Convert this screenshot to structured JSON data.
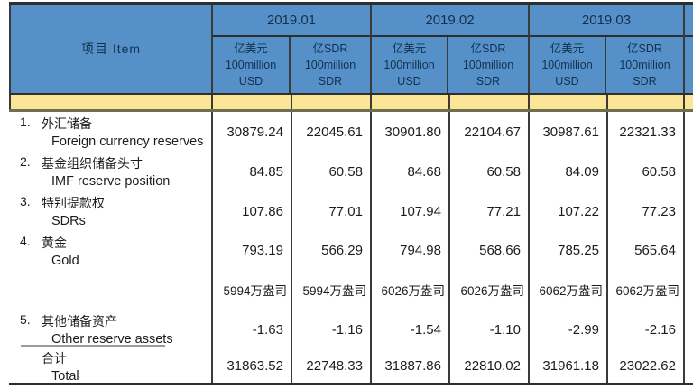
{
  "colors": {
    "header_bg": "#5591C8",
    "header_text": "#14304e",
    "band_bg": "#FAE696",
    "band_border": "#6e6e50",
    "grid_border": "#3a3a3a",
    "outer_border": "#2e2e2e"
  },
  "chart_data": {
    "type": "table",
    "title": "",
    "item_header": "项目  Item",
    "months": [
      "2019.01",
      "2019.02",
      "2019.03"
    ],
    "unit_headers": {
      "usd": {
        "l1": "亿美元",
        "l2": "100million",
        "l3": "USD"
      },
      "sdr": {
        "l1": "亿SDR",
        "l2": "100million",
        "l3": "SDR"
      }
    },
    "rows": [
      {
        "no": "1.",
        "cn": "外汇储备",
        "en": "Foreign currency reserves",
        "values": [
          "30879.24",
          "22045.61",
          "30901.80",
          "22104.67",
          "30987.61",
          "22321.33"
        ]
      },
      {
        "no": "2.",
        "cn": "基金组织储备头寸",
        "en": "IMF reserve position",
        "values": [
          "84.85",
          "60.58",
          "84.68",
          "60.58",
          "84.09",
          "60.58"
        ]
      },
      {
        "no": "3.",
        "cn": "特别提款权",
        "en": "SDRs",
        "values": [
          "107.86",
          "77.01",
          "107.94",
          "77.21",
          "107.22",
          "77.23"
        ]
      },
      {
        "no": "4.",
        "cn": "黄金",
        "en": "Gold",
        "values": [
          "793.19",
          "566.29",
          "794.98",
          "568.66",
          "785.25",
          "565.64"
        ]
      },
      {
        "no": "",
        "cn": "",
        "en": "",
        "values": [
          "5994万盎司",
          "5994万盎司",
          "6026万盎司",
          "6026万盎司",
          "6062万盎司",
          "6062万盎司"
        ]
      },
      {
        "no": "5.",
        "cn": "其他储备资产",
        "en": "Other reserve assets",
        "values": [
          "-1.63",
          "-1.16",
          "-1.54",
          "-1.10",
          "-2.99",
          "-2.16"
        ]
      },
      {
        "no": "",
        "cn": "合计",
        "en": "Total",
        "values": [
          "31863.52",
          "22748.33",
          "31887.86",
          "22810.02",
          "31961.18",
          "23022.62"
        ]
      }
    ]
  }
}
